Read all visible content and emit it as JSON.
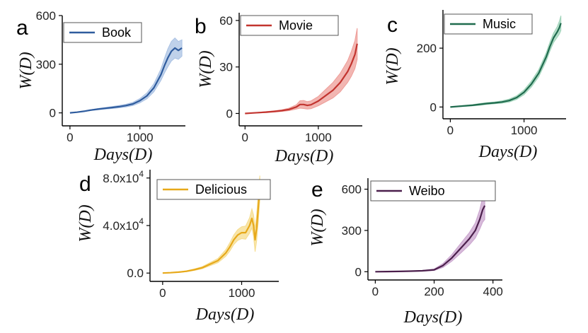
{
  "chart_data": [
    {
      "id": "a",
      "type": "line",
      "panel_label": "a",
      "series_name": "Book",
      "color": "#2f5c9e",
      "band_color": "#a9c1e3",
      "xlabel": "Days(D)",
      "ylabel": "W(D)",
      "xlim": [
        -110,
        1650
      ],
      "ylim": [
        -80,
        600
      ],
      "xticks": [
        0,
        1000
      ],
      "yticks": [
        0,
        300,
        600
      ],
      "x": [
        0,
        100,
        200,
        300,
        400,
        500,
        600,
        700,
        800,
        900,
        1000,
        1100,
        1200,
        1300,
        1350,
        1400,
        1450,
        1500,
        1550,
        1600
      ],
      "y": [
        0,
        4,
        10,
        17,
        23,
        28,
        33,
        38,
        45,
        55,
        75,
        105,
        155,
        235,
        290,
        340,
        380,
        400,
        385,
        400
      ],
      "band": [
        0,
        1,
        2,
        3,
        4,
        5,
        6,
        7,
        8,
        10,
        13,
        18,
        25,
        35,
        45,
        55,
        60,
        62,
        55,
        50
      ]
    },
    {
      "id": "b",
      "type": "line",
      "panel_label": "b",
      "series_name": "Movie",
      "color": "#c2342f",
      "band_color": "#ee9d98",
      "xlabel": "Days(D)",
      "ylabel": "W(D)",
      "xlim": [
        -80,
        1600
      ],
      "ylim": [
        -8,
        65
      ],
      "xticks": [
        0,
        1000
      ],
      "yticks": [
        0,
        30,
        60
      ],
      "x": [
        0,
        100,
        200,
        300,
        400,
        500,
        600,
        700,
        750,
        800,
        850,
        900,
        1000,
        1100,
        1200,
        1300,
        1400,
        1450,
        1500,
        1530
      ],
      "y": [
        0,
        0.3,
        0.6,
        0.9,
        1.3,
        1.8,
        2.6,
        4.2,
        5.8,
        5.8,
        5.2,
        5.6,
        8,
        11.5,
        15,
        20,
        27,
        32,
        38,
        45
      ],
      "band": [
        0,
        0.1,
        0.2,
        0.3,
        0.4,
        0.5,
        0.8,
        1.4,
        2.4,
        2.6,
        2.4,
        2.5,
        3,
        4,
        5,
        6,
        7,
        8,
        9,
        10
      ]
    },
    {
      "id": "c",
      "type": "line",
      "panel_label": "c",
      "series_name": "Music",
      "color": "#1f6b4e",
      "band_color": "#9ed3b8",
      "xlabel": "Days(D)",
      "ylabel": "W(D)",
      "xlim": [
        -100,
        1570
      ],
      "ylim": [
        -40,
        330
      ],
      "xticks": [
        0,
        1000
      ],
      "yticks": [
        0,
        200
      ],
      "x": [
        0,
        100,
        200,
        300,
        400,
        500,
        600,
        700,
        800,
        900,
        1000,
        1100,
        1200,
        1300,
        1350,
        1400,
        1450,
        1480,
        1500
      ],
      "y": [
        0,
        2,
        4,
        6,
        9,
        12,
        14,
        17,
        22,
        32,
        50,
        78,
        115,
        170,
        205,
        235,
        255,
        270,
        285
      ],
      "band": [
        0,
        1,
        2,
        2,
        3,
        3,
        3,
        4,
        5,
        6,
        8,
        10,
        12,
        14,
        15,
        16,
        18,
        22,
        25
      ]
    },
    {
      "id": "d",
      "type": "line",
      "panel_label": "d",
      "series_name": "Delicious",
      "color": "#e7a91a",
      "band_color": "#f6dc8c",
      "xlabel": "Days(D)",
      "ylabel": "W(D)",
      "xlim": [
        -160,
        1470
      ],
      "ylim": [
        -7000,
        87000
      ],
      "xticks": [
        0,
        1000
      ],
      "yticks": [
        0,
        40000,
        80000
      ],
      "yticklabels": [
        "0.0",
        "4.0x10",
        "8.0x10"
      ],
      "ytick_exponents": [
        "",
        "4",
        "4"
      ],
      "x": [
        0,
        100,
        200,
        300,
        400,
        500,
        600,
        700,
        800,
        850,
        900,
        950,
        1000,
        1050,
        1100,
        1130,
        1150,
        1170,
        1190,
        1210,
        1230
      ],
      "y": [
        0,
        300,
        800,
        1500,
        2800,
        4500,
        7500,
        10500,
        17000,
        22000,
        28000,
        32000,
        34000,
        34000,
        40000,
        46000,
        40000,
        28000,
        38000,
        55000,
        72000
      ],
      "band": [
        0,
        100,
        200,
        400,
        600,
        900,
        1300,
        1800,
        2800,
        3500,
        4000,
        4500,
        5000,
        5500,
        6500,
        8000,
        9000,
        10000,
        11000,
        12000,
        10000
      ]
    },
    {
      "id": "e",
      "type": "line",
      "panel_label": "e",
      "series_name": "Weibo",
      "color": "#4b1f4c",
      "band_color": "#c9a3cd",
      "xlabel": "Days(D)",
      "ylabel": "W(D)",
      "xlim": [
        -25,
        432
      ],
      "ylim": [
        -60,
        680
      ],
      "xticks": [
        0,
        200,
        400
      ],
      "yticks": [
        0,
        300,
        600
      ],
      "x": [
        0,
        40,
        80,
        120,
        160,
        200,
        230,
        260,
        290,
        320,
        340,
        355,
        365,
        372
      ],
      "y": [
        0,
        1,
        2,
        4,
        7,
        14,
        45,
        100,
        170,
        240,
        300,
        380,
        450,
        480
      ],
      "band": [
        0,
        0.5,
        1,
        2,
        3,
        5,
        14,
        24,
        35,
        45,
        55,
        70,
        90,
        100
      ]
    }
  ]
}
